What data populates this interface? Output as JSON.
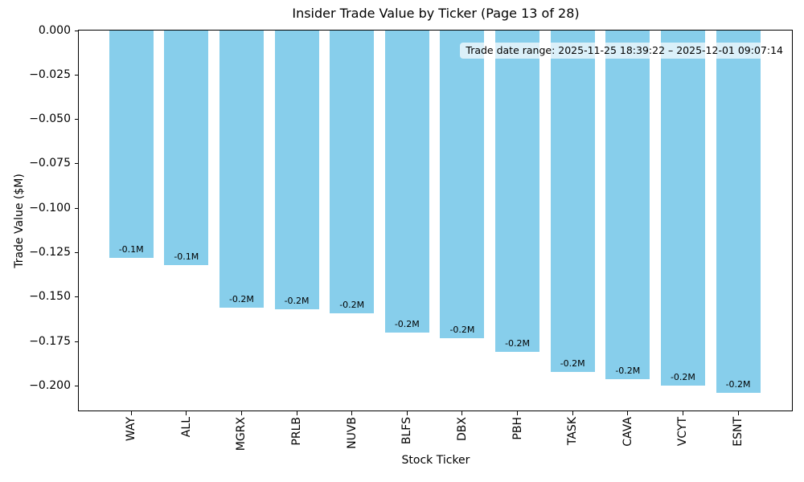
{
  "figure": {
    "background": "#ffffff"
  },
  "chart_data": {
    "type": "bar",
    "title": "Insider Trade Value by Ticker (Page 13 of 28)",
    "xlabel": "Stock Ticker",
    "ylabel": "Trade Value ($M)",
    "categories": [
      "WAY",
      "ALL",
      "MGRX",
      "PRLB",
      "NUVB",
      "BLFS",
      "DBX",
      "PBH",
      "TASK",
      "CAVA",
      "VCYT",
      "ESNT"
    ],
    "values": [
      -0.128,
      -0.132,
      -0.156,
      -0.157,
      -0.159,
      -0.17,
      -0.173,
      -0.181,
      -0.192,
      -0.196,
      -0.2,
      -0.204
    ],
    "bar_labels": [
      "-0.1M",
      "-0.1M",
      "-0.2M",
      "-0.2M",
      "-0.2M",
      "-0.2M",
      "-0.2M",
      "-0.2M",
      "-0.2M",
      "-0.2M",
      "-0.2M",
      "-0.2M"
    ],
    "yticks": [
      0.0,
      -0.025,
      -0.05,
      -0.075,
      -0.1,
      -0.125,
      -0.15,
      -0.175,
      -0.2
    ],
    "ytick_labels": [
      "0.000",
      "−0.025",
      "−0.050",
      "−0.075",
      "−0.100",
      "−0.125",
      "−0.150",
      "−0.175",
      "−0.200"
    ],
    "ylim": [
      -0.2143,
      0
    ],
    "xlim": [
      -0.95,
      11.99
    ],
    "bar_width_fraction": 0.8,
    "bar_color": "#87CEEB",
    "grid": false,
    "legend": null,
    "annotation": {
      "text": "Trade date range: 2025-11-25 18:39:22 – 2025-12-01 09:07:14",
      "background": "#ffffff",
      "background_alpha": 0.7
    }
  }
}
